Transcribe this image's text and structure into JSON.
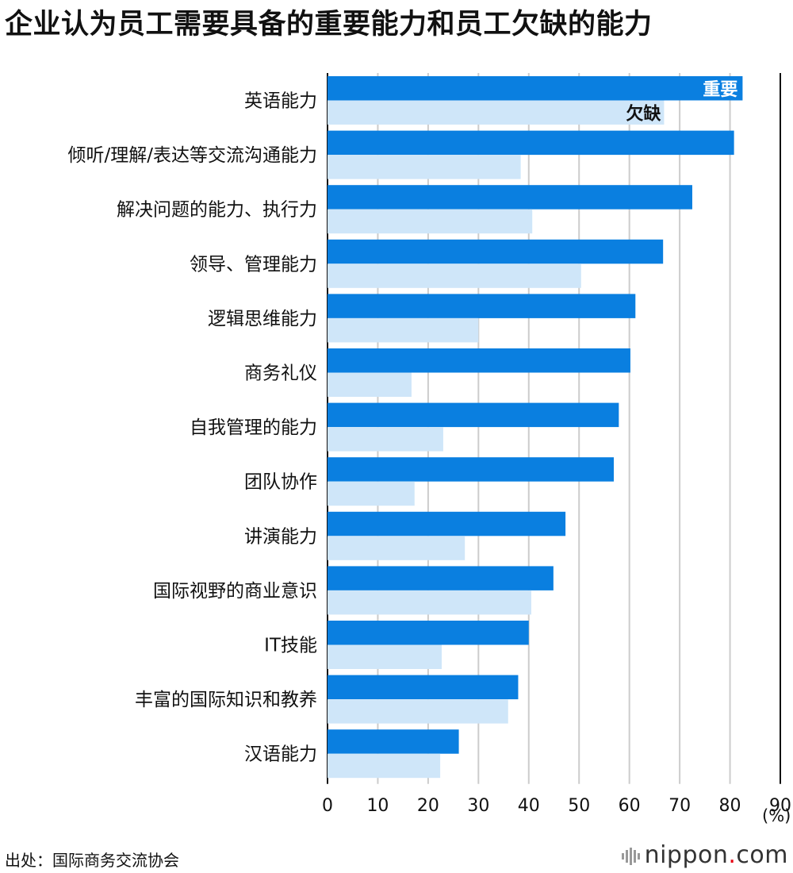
{
  "title": "企业认为员工需要具备的重要能力和员工欠缺的能力",
  "unit_label": "(%)",
  "source": "出处：国际商务交流协会",
  "brand": {
    "name": "nippon",
    "dot": ".",
    "suffix": "com"
  },
  "colors": {
    "important": "#0a7fe0",
    "lacking": "#cfe6f9",
    "grid": "#cccccc",
    "axis": "#111111"
  },
  "chart_data": {
    "type": "bar",
    "orientation": "horizontal",
    "title": "企业认为员工需要具备的重要能力和员工欠缺的能力",
    "categories": [
      "英语能力",
      "倾听/理解/表达等交流沟通能力",
      "解决问题的能力、执行力",
      "领导、管理能力",
      "逻辑思维能力",
      "商务礼仪",
      "自我管理的能力",
      "团队协作",
      "讲演能力",
      "国际视野的商业意识",
      "IT技能",
      "丰富的国际知识和教养",
      "汉语能力"
    ],
    "series": [
      {
        "name": "重要",
        "values": [
          82.5,
          80.8,
          72.5,
          66.7,
          61.2,
          60.2,
          57.9,
          56.9,
          47.3,
          44.9,
          40.0,
          37.9,
          26.1
        ]
      },
      {
        "name": "欠缺",
        "values": [
          66.9,
          38.4,
          40.7,
          50.4,
          30.0,
          16.7,
          23.0,
          17.3,
          27.3,
          40.5,
          22.7,
          35.9,
          22.4
        ]
      }
    ],
    "xlim": [
      0,
      90
    ],
    "xticks": [
      0,
      10,
      20,
      30,
      40,
      50,
      60,
      70,
      80,
      90
    ],
    "xlabel": "(%)",
    "grid": true
  }
}
